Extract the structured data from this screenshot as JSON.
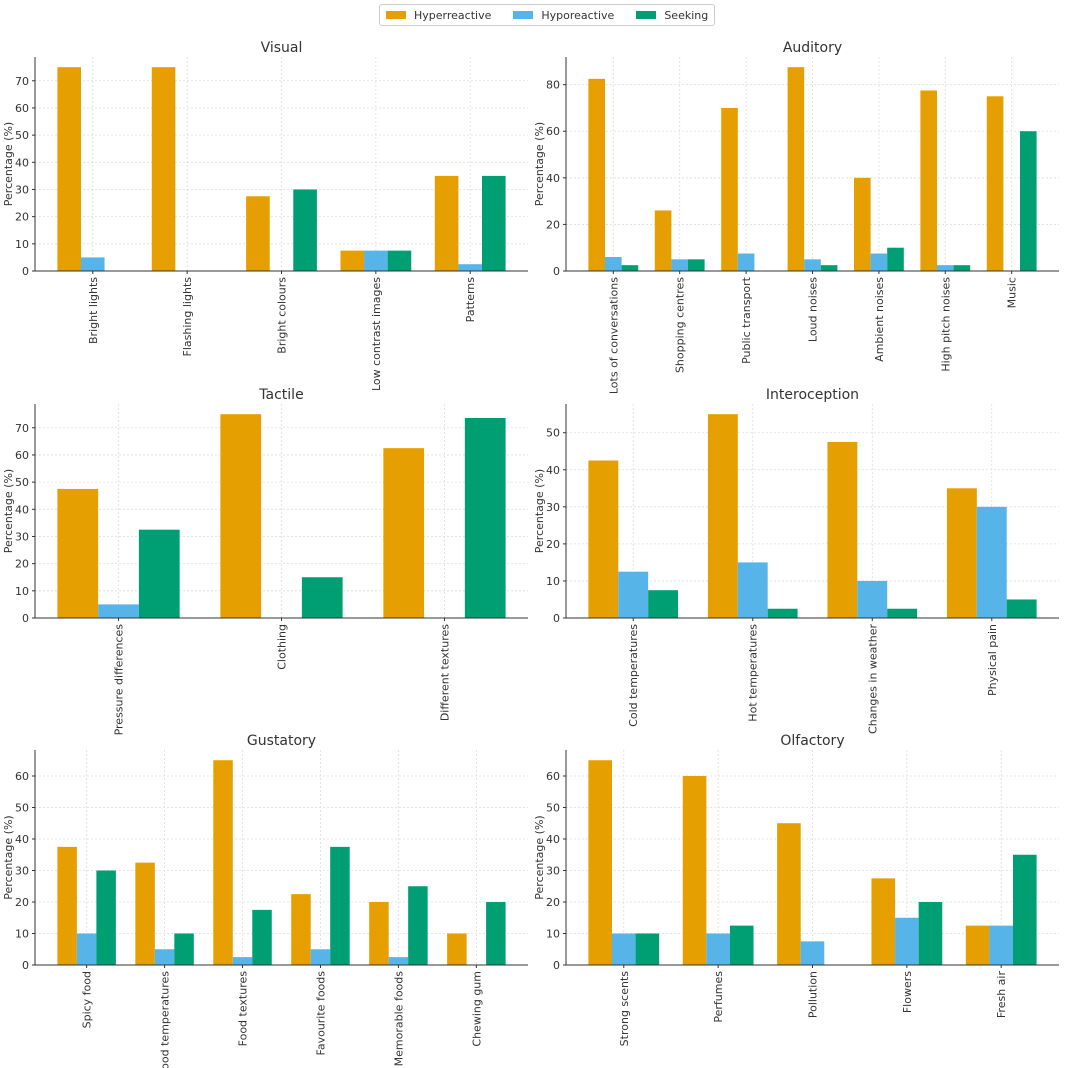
{
  "legend": [
    "Hyperreactive",
    "Hyporeactive",
    "Seeking"
  ],
  "colors": {
    "Hyperreactive": "#E69F00",
    "Hyporeactive": "#56B4E9",
    "Seeking": "#009E73"
  },
  "chart_data": [
    {
      "type": "bar",
      "title": "Visual",
      "ylabel": "Percentage (%)",
      "ylim": [
        0,
        78.75
      ],
      "yticks": [
        0,
        10,
        20,
        30,
        40,
        50,
        60,
        70
      ],
      "categories": [
        "Bright lights",
        "Flashing lights",
        "Bright colours",
        "Low contrast images",
        "Patterns"
      ],
      "series": [
        {
          "name": "Hyperreactive",
          "values": [
            75,
            75,
            27.5,
            7.5,
            35
          ]
        },
        {
          "name": "Hyporeactive",
          "values": [
            5,
            0,
            0,
            7.5,
            2.5
          ]
        },
        {
          "name": "Seeking",
          "values": [
            0,
            0,
            30,
            7.5,
            35
          ]
        }
      ]
    },
    {
      "type": "bar",
      "title": "Auditory",
      "ylabel": "Percentage (%)",
      "ylim": [
        0,
        91.875
      ],
      "yticks": [
        0,
        20,
        40,
        60,
        80
      ],
      "categories": [
        "Lots of conversations",
        "Shopping centres",
        "Public transport",
        "Loud noises",
        "Ambient noises",
        "High pitch noises",
        "Music"
      ],
      "series": [
        {
          "name": "Hyperreactive",
          "values": [
            82.5,
            26,
            70,
            87.5,
            40,
            77.5,
            75
          ]
        },
        {
          "name": "Hyporeactive",
          "values": [
            6,
            5,
            7.5,
            5,
            7.5,
            2.5,
            0
          ]
        },
        {
          "name": "Seeking",
          "values": [
            2.5,
            5,
            0,
            2.5,
            10,
            2.5,
            60
          ]
        }
      ]
    },
    {
      "type": "bar",
      "title": "Tactile",
      "ylabel": "Percentage (%)",
      "ylim": [
        0,
        78.75
      ],
      "yticks": [
        0,
        10,
        20,
        30,
        40,
        50,
        60,
        70
      ],
      "categories": [
        "Pressure differences",
        "Clothing",
        "Different textures"
      ],
      "series": [
        {
          "name": "Hyperreactive",
          "values": [
            47.5,
            75,
            62.5
          ]
        },
        {
          "name": "Hyporeactive",
          "values": [
            5,
            0,
            0
          ]
        },
        {
          "name": "Seeking",
          "values": [
            32.5,
            15,
            73.6
          ]
        }
      ]
    },
    {
      "type": "bar",
      "title": "Interoception",
      "ylabel": "Percentage (%)",
      "ylim": [
        0,
        57.75
      ],
      "yticks": [
        0,
        10,
        20,
        30,
        40,
        50
      ],
      "categories": [
        "Cold temperatures",
        "Hot temperatures",
        "Changes in weather",
        "Physical pain"
      ],
      "series": [
        {
          "name": "Hyperreactive",
          "values": [
            42.5,
            55,
            47.5,
            35
          ]
        },
        {
          "name": "Hyporeactive",
          "values": [
            12.5,
            15,
            10,
            30
          ]
        },
        {
          "name": "Seeking",
          "values": [
            7.5,
            2.5,
            2.5,
            5
          ]
        }
      ]
    },
    {
      "type": "bar",
      "title": "Gustatory",
      "ylabel": "Percentage (%)",
      "ylim": [
        0,
        68.25
      ],
      "yticks": [
        0,
        10,
        20,
        30,
        40,
        50,
        60
      ],
      "categories": [
        "Spicy food",
        "Food temperatures",
        "Food textures",
        "Favourite foods",
        "Memorable foods",
        "Chewing gum"
      ],
      "series": [
        {
          "name": "Hyperreactive",
          "values": [
            37.5,
            32.5,
            65,
            22.5,
            20,
            10
          ]
        },
        {
          "name": "Hyporeactive",
          "values": [
            10,
            5,
            2.5,
            5,
            2.5,
            0
          ]
        },
        {
          "name": "Seeking",
          "values": [
            30,
            10,
            17.5,
            37.5,
            25,
            20
          ]
        }
      ]
    },
    {
      "type": "bar",
      "title": "Olfactory",
      "ylabel": "Percentage (%)",
      "ylim": [
        0,
        68.25
      ],
      "yticks": [
        0,
        10,
        20,
        30,
        40,
        50,
        60
      ],
      "categories": [
        "Strong scents",
        "Perfumes",
        "Pollution",
        "Flowers",
        "Fresh air"
      ],
      "series": [
        {
          "name": "Hyperreactive",
          "values": [
            65,
            60,
            45,
            27.5,
            12.5
          ]
        },
        {
          "name": "Hyporeactive",
          "values": [
            10,
            10,
            7.5,
            15,
            12.5
          ]
        },
        {
          "name": "Seeking",
          "values": [
            10,
            12.5,
            0,
            20,
            35
          ]
        }
      ]
    }
  ]
}
